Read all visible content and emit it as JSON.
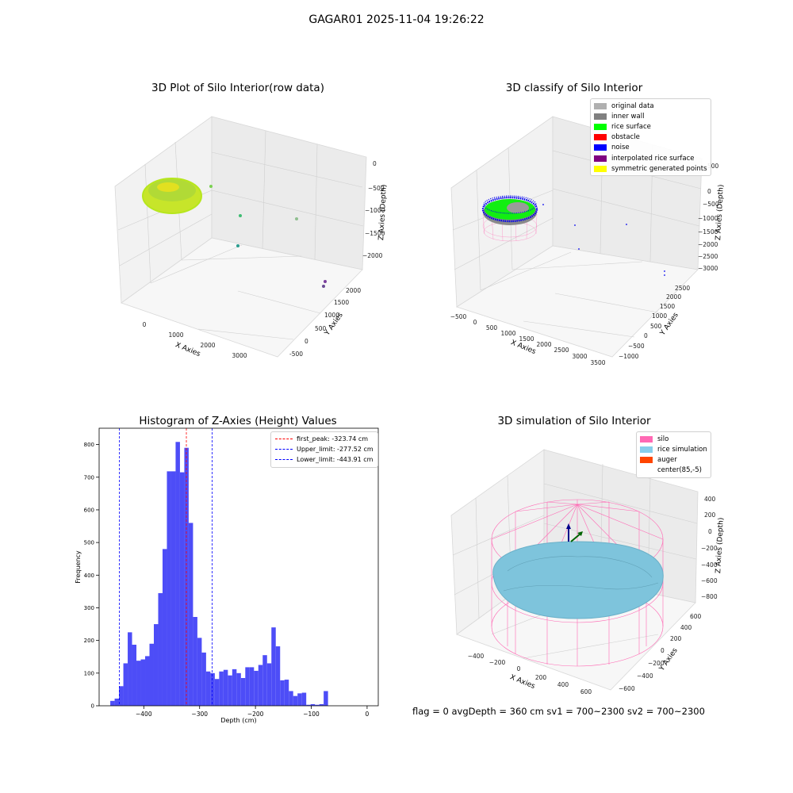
{
  "figure": {
    "suptitle": "GAGAR01 2025-11-04 19:26:22",
    "footer": "flag = 0     avgDepth = 360 cm  sv1 = 700~2300  sv2 = 700~2300"
  },
  "panels": {
    "raw": {
      "title": "3D Plot of Silo Interior(row data)",
      "xlabel": "X Axies",
      "ylabel": "Y Axies",
      "zlabel": "Z Axies (Depth)",
      "xticks": [
        "0",
        "1000",
        "2000",
        "3000"
      ],
      "yticks": [
        "-500",
        "0",
        "500",
        "1000",
        "1500",
        "2000"
      ],
      "zticks": [
        "0",
        "−500",
        "−1000",
        "−1500",
        "−2000"
      ]
    },
    "classify": {
      "title": "3D classify of Silo Interior",
      "xlabel": "X Axies",
      "ylabel": "Y Axies",
      "zlabel": "Z Axies (Depth)",
      "xticks": [
        "−500",
        "0",
        "500",
        "1000",
        "1500",
        "2000",
        "2500",
        "3000",
        "3500"
      ],
      "yticks": [
        "−1000",
        "−500",
        "0",
        "500",
        "1000",
        "1500",
        "2000",
        "2500"
      ],
      "zticks": [
        "500",
        "0",
        "−500",
        "−1000",
        "−1500",
        "−2000",
        "−2500",
        "−3000"
      ],
      "legend": [
        {
          "label": "original data",
          "color": "#b0b0b0"
        },
        {
          "label": "inner wall",
          "color": "#808080"
        },
        {
          "label": "rice surface",
          "color": "#00ff00"
        },
        {
          "label": "obstacle",
          "color": "#ff0000"
        },
        {
          "label": "noise",
          "color": "#0000ff"
        },
        {
          "label": "interpolated rice surface",
          "color": "#800080"
        },
        {
          "label": "symmetric generated points",
          "color": "#ffff00"
        }
      ]
    },
    "simulation": {
      "title": "3D simulation of Silo Interior",
      "xlabel": "X Axies",
      "ylabel": "Y Axies",
      "zlabel": "Z Axies (Depth)",
      "xticks": [
        "−400",
        "−200",
        "0",
        "200",
        "400",
        "600"
      ],
      "yticks": [
        "−600",
        "−400",
        "−200",
        "0",
        "200",
        "400",
        "600"
      ],
      "zticks": [
        "400",
        "200",
        "0",
        "−200",
        "−400",
        "−600",
        "−800"
      ],
      "legend": [
        {
          "label": "silo",
          "color": "#ff69b4"
        },
        {
          "label": "rice simulation",
          "color": "#87ceeb"
        },
        {
          "label": "auger",
          "color": "#ff4500"
        },
        {
          "label": "center(85,-5)",
          "color": ""
        }
      ]
    }
  },
  "chart_data": [
    {
      "type": "scatter",
      "title": "3D Plot of Silo Interior(row data)",
      "xlabel": "X Axies",
      "ylabel": "Y Axies",
      "zlabel": "Z Axies (Depth)",
      "note_series": "dense point cloud of silo interior plus a few outlier points"
    },
    {
      "type": "scatter",
      "title": "3D classify of Silo Interior",
      "xlabel": "X Axies",
      "ylabel": "Y Axies",
      "zlabel": "Z Axies (Depth)"
    },
    {
      "type": "bar",
      "title": "Histogram of Z-Axies (Height) Values",
      "xlabel": "Depth (cm)",
      "ylabel": "Frequency",
      "xlim": [
        -480,
        20
      ],
      "ylim": [
        0,
        850
      ],
      "xticks": [
        -400,
        -300,
        -200,
        -100,
        0
      ],
      "yticks": [
        0,
        100,
        200,
        300,
        400,
        500,
        600,
        700,
        800
      ],
      "bin_start": -460,
      "bin_width": 7.8,
      "values": [
        15,
        22,
        60,
        130,
        225,
        187,
        138,
        142,
        152,
        190,
        250,
        345,
        480,
        718,
        718,
        808,
        715,
        790,
        560,
        272,
        208,
        163,
        105,
        100,
        82,
        105,
        110,
        93,
        112,
        100,
        85,
        118,
        118,
        107,
        125,
        155,
        130,
        240,
        182,
        78,
        80,
        45,
        30,
        38,
        40,
        3,
        5,
        3,
        5,
        45
      ],
      "bar_color": "#4d4df7",
      "lines": [
        {
          "label": "first_peak: -323.74 cm",
          "x": -323.74,
          "color": "#ff0000"
        },
        {
          "label": "Upper_limit: -277.52 cm",
          "x": -277.52,
          "color": "#0000ff"
        },
        {
          "label": "Lower_limit: -443.91 cm",
          "x": -443.91,
          "color": "#0000ff"
        }
      ]
    },
    {
      "type": "scatter",
      "title": "3D simulation of Silo Interior",
      "xlabel": "X Axies",
      "ylabel": "Y Axies",
      "zlabel": "Z Axies (Depth)"
    }
  ]
}
